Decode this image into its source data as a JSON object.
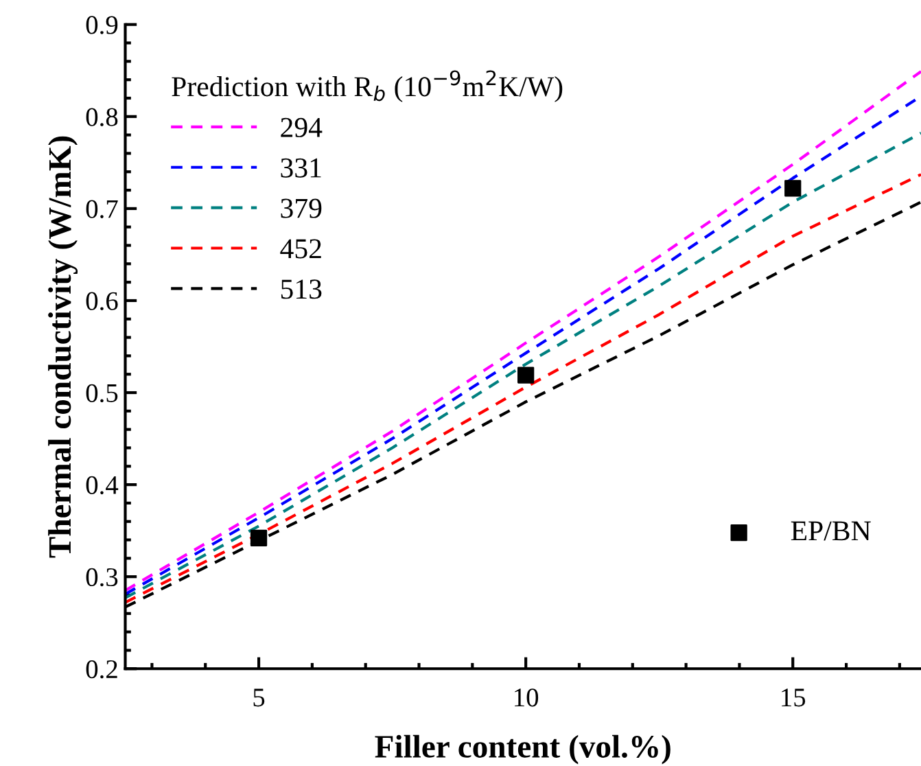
{
  "chart_data": {
    "type": "line",
    "xlabel": "Filler content (vol.%)",
    "ylabel": "Thermal conductivity (W/mK)",
    "legend_title": "Prediction with R$_{b}$ (10$^{−9}$m$^{2}$K/W)",
    "xlim": [
      2.5,
      17.4
    ],
    "ylim": [
      0.2,
      0.9
    ],
    "xticks": [
      5,
      10,
      15
    ],
    "yticks": [
      0.2,
      0.3,
      0.4,
      0.5,
      0.6,
      0.7,
      0.8,
      0.9
    ],
    "x": [
      2.5,
      5,
      7.5,
      10,
      12.5,
      15,
      17.4
    ],
    "series": [
      {
        "name": "294",
        "color": "#ff00ff",
        "values": [
          0.285,
          0.37,
          0.458,
          0.554,
          0.648,
          0.748,
          0.849
        ]
      },
      {
        "name": "331",
        "color": "#0000ff",
        "values": [
          0.281,
          0.364,
          0.45,
          0.543,
          0.635,
          0.733,
          0.822
        ]
      },
      {
        "name": "379",
        "color": "#008080",
        "values": [
          0.277,
          0.355,
          0.44,
          0.531,
          0.616,
          0.707,
          0.782
        ]
      },
      {
        "name": "452",
        "color": "#ff0000",
        "values": [
          0.272,
          0.346,
          0.423,
          0.506,
          0.585,
          0.67,
          0.737
        ]
      },
      {
        "name": "513",
        "color": "#000000",
        "values": [
          0.267,
          0.339,
          0.411,
          0.49,
          0.562,
          0.639,
          0.707
        ]
      },
      {
        "name": "EP/BN",
        "type": "scatter",
        "marker": "square",
        "color": "#000000",
        "x": [
          5,
          10,
          15
        ],
        "values": [
          0.342,
          0.519,
          0.722
        ]
      }
    ],
    "line_style": "dashed",
    "marker": "none",
    "legend": "top left",
    "grid": false
  }
}
